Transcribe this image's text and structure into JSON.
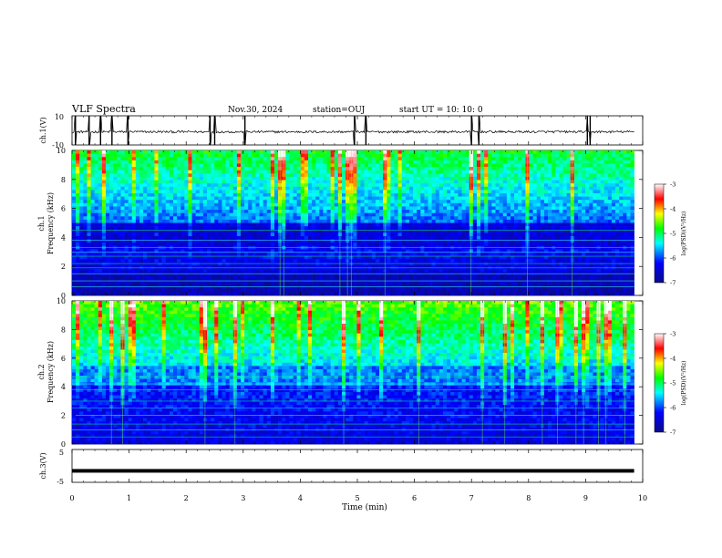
{
  "header": {
    "title": "VLF Spectra",
    "date": "Nov.30, 2024",
    "station": "station=OUJ",
    "start_ut": "start  UT =   10: 10: 0"
  },
  "chart_data": [
    {
      "type": "line",
      "panel": "ch1-waveform",
      "ylabel": "ch.1(V)",
      "ylim": [
        -10,
        10
      ],
      "yticks": [
        "10",
        "-10"
      ],
      "baseline_v": -1,
      "spikes_min": [
        0.06,
        0.3,
        0.5,
        0.7,
        0.98,
        2.42,
        2.5,
        3.03,
        4.95,
        5.15,
        7.0,
        7.13,
        9.03,
        9.08
      ]
    },
    {
      "type": "heatmap",
      "panel": "ch1-spectrogram",
      "ylabel": "ch.1\nFrequency (kHz)",
      "ylim": [
        0,
        10
      ],
      "yticks": [
        "0",
        "2",
        "4",
        "6",
        "8",
        "10"
      ],
      "colorbar": {
        "label": "log(PSD)(V²/Hz)",
        "range": [
          -7,
          -3
        ],
        "ticks": [
          "-3",
          "-4",
          "-5",
          "-6",
          "-7"
        ]
      }
    },
    {
      "type": "heatmap",
      "panel": "ch2-spectrogram",
      "ylabel": "ch.2\nFrequency (kHz)",
      "ylim": [
        0,
        10
      ],
      "yticks": [
        "0",
        "2",
        "4",
        "6",
        "8",
        "10"
      ],
      "colorbar": {
        "label": "log(PSD)(V²/Hz)",
        "range": [
          -7,
          -3
        ],
        "ticks": [
          "-3",
          "-4",
          "-5",
          "-6",
          "-7"
        ]
      }
    },
    {
      "type": "line",
      "panel": "ch3-waveform",
      "ylabel": "ch.3(V)",
      "ylim": [
        -5,
        5
      ],
      "yticks": [
        "5",
        "-5"
      ],
      "value_v": -1.5
    }
  ],
  "xaxis": {
    "label": "Time (min)",
    "range": [
      0,
      10
    ],
    "data_end": 9.85,
    "ticks": [
      "0",
      "1",
      "2",
      "3",
      "4",
      "5",
      "6",
      "7",
      "8",
      "9",
      "10"
    ]
  },
  "colors": {
    "colormap": [
      "#0a0a8a",
      "#0000ff",
      "#00ffff",
      "#00ff00",
      "#ffff00",
      "#ff0000",
      "#ffffff"
    ]
  }
}
